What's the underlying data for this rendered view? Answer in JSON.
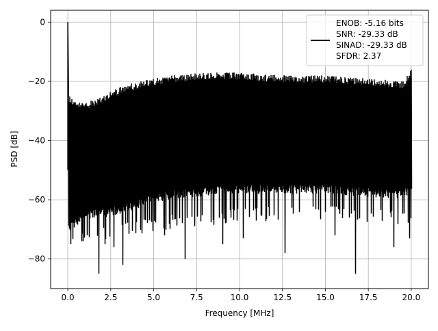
{
  "chart_data": {
    "type": "line",
    "title": "",
    "xlabel": "Frequency [MHz]",
    "ylabel": "PSD [dB]",
    "xlim": [
      -1.0,
      21.0
    ],
    "ylim": [
      -90,
      4
    ],
    "xticks": [
      0.0,
      2.5,
      5.0,
      7.5,
      10.0,
      12.5,
      15.0,
      17.5,
      20.0
    ],
    "xtick_labels": [
      "0.0",
      "2.5",
      "5.0",
      "7.5",
      "10.0",
      "12.5",
      "15.0",
      "17.5",
      "20.0"
    ],
    "yticks": [
      0,
      -20,
      -40,
      -60,
      -80
    ],
    "ytick_labels": [
      "0",
      "−20",
      "−40",
      "−60",
      "−80"
    ],
    "grid": true,
    "legend_position": "top-right",
    "legend": {
      "lines": [
        "ENOB: -5.16 bits",
        "SNR: -29.33 dB",
        "SINAD: -29.33 dB",
        "SFDR: 2.37"
      ],
      "line_color": "#000000"
    },
    "series": [
      {
        "color": "#000000",
        "peak": {
          "x": 0.0,
          "y": 0.0
        },
        "envelope": {
          "x": [
            0.0,
            0.5,
            1.0,
            2.0,
            3.0,
            4.0,
            5.0,
            6.0,
            7.5,
            10.0,
            12.5,
            15.0,
            17.5,
            19.5,
            20.0
          ],
          "upper": [
            -24,
            -27,
            -27,
            -25,
            -22,
            -20,
            -19,
            -18,
            -17,
            -17,
            -18,
            -18,
            -19,
            -20,
            -16
          ],
          "lower": [
            -68,
            -66,
            -64,
            -63,
            -62,
            -60,
            -58,
            -57,
            -56,
            -55,
            -55,
            -55,
            -56,
            -57,
            -54
          ],
          "floor": [
            -72,
            -70,
            -70,
            -69,
            -68,
            -67,
            -66,
            -65,
            -64,
            -63,
            -62,
            -62,
            -63,
            -64,
            -62
          ]
        },
        "deep_notches": [
          {
            "x": 0.15,
            "y": -75
          },
          {
            "x": 0.8,
            "y": -74
          },
          {
            "x": 1.1,
            "y": -72
          },
          {
            "x": 1.8,
            "y": -85
          },
          {
            "x": 2.15,
            "y": -75
          },
          {
            "x": 2.65,
            "y": -76
          },
          {
            "x": 3.2,
            "y": -82
          },
          {
            "x": 5.6,
            "y": -72
          },
          {
            "x": 6.8,
            "y": -80
          },
          {
            "x": 9.0,
            "y": -75
          },
          {
            "x": 10.2,
            "y": -73
          },
          {
            "x": 12.65,
            "y": -78
          },
          {
            "x": 15.55,
            "y": -72
          },
          {
            "x": 16.75,
            "y": -85
          },
          {
            "x": 18.95,
            "y": -76
          },
          {
            "x": 19.9,
            "y": -73
          }
        ]
      }
    ]
  }
}
